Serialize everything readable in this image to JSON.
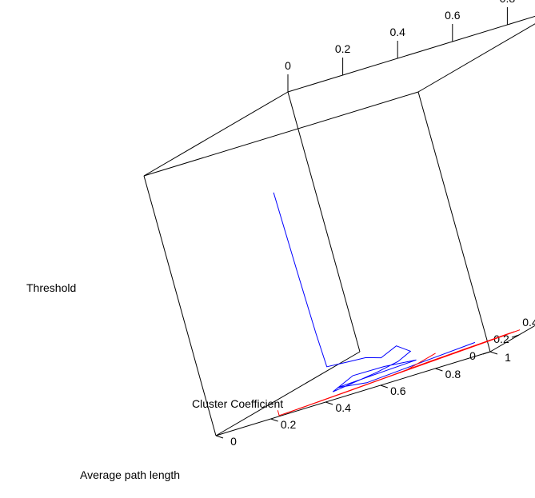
{
  "chart_data": {
    "type": "line",
    "title": "",
    "axes": {
      "x": {
        "label": "Average path length",
        "ticks": [
          "0",
          "0.2",
          "0.4",
          "0.6",
          "0.8",
          "1"
        ],
        "range": [
          0,
          1
        ]
      },
      "y": {
        "label": "Cluster Coefficient",
        "ticks": [
          "0",
          "0.2",
          "0.4",
          "0.6",
          "0.8",
          "1"
        ],
        "range": [
          0,
          1
        ]
      },
      "z": {
        "label": "Threshold",
        "ticks": [
          "0",
          "0.2",
          "0.4",
          "0.6",
          "0.8",
          "1"
        ],
        "range": [
          0,
          1
        ]
      }
    },
    "grid": false,
    "legend": "none",
    "colors": {
      "box": "#000000",
      "blue_series": "#0000ff",
      "red_series": "#ff0000"
    },
    "series": [
      {
        "color": "#0000ff",
        "points": [
          [
            0.0,
            0.42,
            0.8
          ],
          [
            0.01,
            0.42,
            0.5
          ],
          [
            0.02,
            0.42,
            0.25
          ],
          [
            0.03,
            0.42,
            0.12
          ],
          [
            0.06,
            0.48,
            0.11
          ],
          [
            0.1,
            0.52,
            0.1
          ],
          [
            0.12,
            0.56,
            0.08
          ],
          [
            0.16,
            0.6,
            0.1
          ],
          [
            0.2,
            0.62,
            0.06
          ],
          [
            0.18,
            0.58,
            0.04
          ],
          [
            0.14,
            0.52,
            0.03
          ],
          [
            0.06,
            0.4,
            0.02
          ],
          [
            0.1,
            0.46,
            0.05
          ],
          [
            0.16,
            0.54,
            0.04
          ],
          [
            0.22,
            0.62,
            0.02
          ],
          [
            0.06,
            0.42,
            0.03
          ],
          [
            0.1,
            0.5,
            0.01
          ],
          [
            0.28,
            0.8,
            0.01
          ]
        ]
      },
      {
        "color": "#ff0000",
        "points": [
          [
            0.02,
            0.22,
            0.02
          ],
          [
            0.02,
            0.22,
            0.0
          ],
          [
            0.06,
            0.34,
            0.0
          ],
          [
            0.12,
            0.48,
            0.0
          ],
          [
            0.2,
            0.64,
            0.0
          ],
          [
            0.3,
            0.9,
            0.0
          ],
          [
            0.02,
            0.24,
            0.0
          ],
          [
            0.1,
            0.44,
            0.0
          ],
          [
            0.22,
            0.66,
            0.0
          ],
          [
            0.32,
            0.92,
            0.0
          ],
          [
            0.04,
            0.28,
            0.0
          ],
          [
            0.14,
            0.52,
            0.0
          ],
          [
            0.26,
            0.76,
            0.0
          ],
          [
            0.32,
            0.94,
            0.0
          ],
          [
            0.08,
            0.38,
            0.0
          ],
          [
            0.18,
            0.6,
            0.0
          ],
          [
            0.24,
            0.68,
            0.02
          ]
        ]
      }
    ]
  }
}
